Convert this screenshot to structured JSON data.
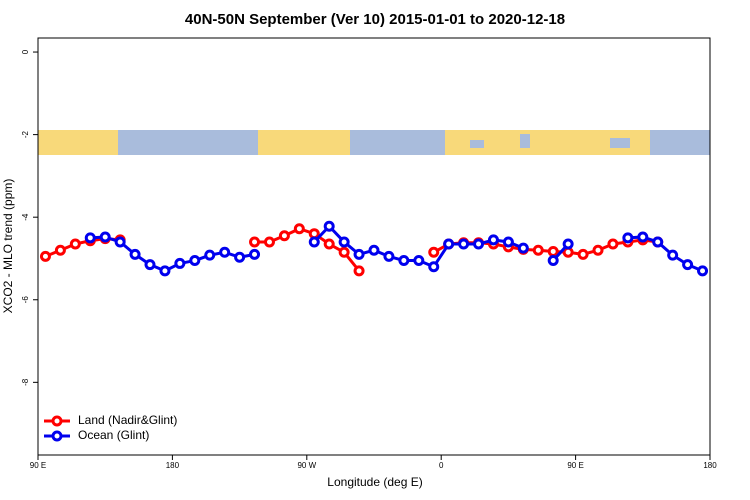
{
  "chart_data": {
    "type": "line",
    "title": "40N-50N September (Ver 10)   2015-01-01 to 2020-12-18",
    "x_label": "Longitude (deg E)",
    "y_label": "XCO2 - MLO trend (ppm)",
    "xlim": [
      90,
      540
    ],
    "xticks": [
      {
        "value": 90,
        "label": "90 E"
      },
      180,
      {
        "value": 270,
        "label": "90 W"
      },
      {
        "value": 360,
        "label": "0"
      },
      {
        "value": 450,
        "label": "90 E"
      },
      {
        "value": 540,
        "label": "180"
      }
    ],
    "ylim": [
      -9.76,
      0.34
    ],
    "yticks": [
      0,
      -2,
      -4,
      -6,
      -8
    ],
    "legend": "bottom-left",
    "x": [
      95,
      105,
      115,
      125,
      135,
      145,
      155,
      165,
      175,
      185,
      195,
      205,
      215,
      225,
      235,
      245,
      255,
      265,
      275,
      285,
      295,
      305,
      315,
      325,
      335,
      345,
      355,
      365,
      375,
      385,
      395,
      405,
      415,
      425,
      435,
      445,
      455,
      465,
      475,
      485,
      495,
      505,
      515,
      525,
      535
    ],
    "series": [
      {
        "name": "Land (Nadir&Glint)",
        "color": "#ff0000",
        "values": [
          -4.95,
          -4.8,
          -4.65,
          -4.57,
          -4.52,
          -4.55,
          null,
          null,
          null,
          null,
          null,
          null,
          null,
          null,
          -4.6,
          -4.6,
          -4.45,
          -4.28,
          -4.4,
          -4.65,
          -4.85,
          -5.3,
          null,
          null,
          null,
          null,
          -4.85,
          -4.65,
          -4.62,
          -4.62,
          -4.65,
          -4.72,
          -4.78,
          -4.8,
          -4.83,
          -4.85,
          -4.9,
          -4.8,
          -4.65,
          -4.6,
          -4.55,
          -4.6,
          null,
          null,
          null
        ]
      },
      {
        "name": "Ocean (Glint)",
        "color": "#0000ee",
        "values": [
          null,
          null,
          null,
          -4.5,
          -4.48,
          -4.6,
          -4.9,
          -5.15,
          -5.3,
          -5.12,
          -5.05,
          -4.92,
          -4.85,
          -4.97,
          -4.9,
          null,
          null,
          null,
          -4.6,
          -4.22,
          -4.6,
          -4.9,
          -4.8,
          -4.95,
          -5.05,
          -5.05,
          -5.2,
          -4.65,
          -4.65,
          -4.65,
          -4.55,
          -4.6,
          -4.75,
          null,
          -5.05,
          -4.65,
          null,
          null,
          null,
          -4.5,
          -4.48,
          -4.6,
          -4.92,
          -5.15,
          -5.3
        ]
      }
    ]
  }
}
